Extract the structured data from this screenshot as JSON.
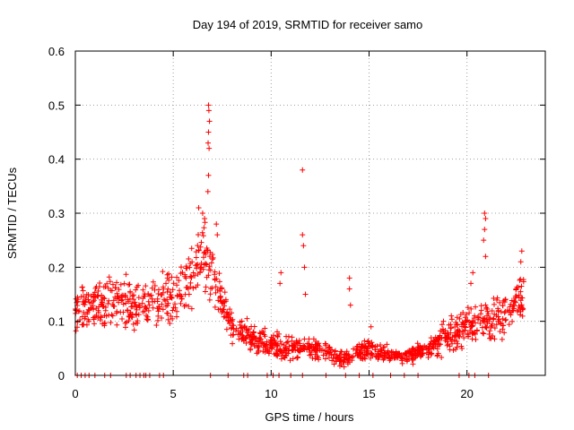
{
  "chart_data": {
    "type": "scatter",
    "title": "Day 194 of 2019, SRMTID for receiver samo",
    "xlabel": "GPS time / hours",
    "ylabel": "SRMTID / TECUs",
    "xlim": [
      0,
      24
    ],
    "ylim": [
      0,
      0.6
    ],
    "xticks": [
      0,
      5,
      10,
      15,
      20
    ],
    "xtick_labels": [
      "0",
      "5",
      "10",
      "15",
      "20"
    ],
    "yticks": [
      0,
      0.1,
      0.2,
      0.3,
      0.4,
      0.5,
      0.6
    ],
    "ytick_labels": [
      "0",
      "0.1",
      "0.2",
      "0.3",
      "0.4",
      "0.5",
      "0.6"
    ],
    "grid": true,
    "marker": "+",
    "color": "#ff0000",
    "envelope": {
      "x": [
        0,
        1,
        2,
        3,
        4,
        5,
        6,
        6.5,
        6.8,
        7.5,
        8,
        9,
        10,
        11,
        12,
        13,
        13.5,
        14,
        15,
        16,
        17,
        18,
        19,
        20,
        21,
        22,
        22.9
      ],
      "mean": [
        0.12,
        0.13,
        0.14,
        0.125,
        0.13,
        0.15,
        0.19,
        0.22,
        0.21,
        0.14,
        0.09,
        0.07,
        0.055,
        0.05,
        0.05,
        0.04,
        0.03,
        0.035,
        0.05,
        0.04,
        0.035,
        0.05,
        0.07,
        0.09,
        0.1,
        0.12,
        0.14
      ],
      "spread": [
        0.035,
        0.04,
        0.045,
        0.04,
        0.04,
        0.045,
        0.05,
        0.06,
        0.06,
        0.04,
        0.025,
        0.02,
        0.02,
        0.02,
        0.02,
        0.015,
        0.012,
        0.015,
        0.015,
        0.012,
        0.012,
        0.015,
        0.025,
        0.03,
        0.035,
        0.035,
        0.04
      ]
    },
    "spike_points": [
      {
        "x": 6.8,
        "y": 0.5
      },
      {
        "x": 6.82,
        "y": 0.49
      },
      {
        "x": 6.85,
        "y": 0.47
      },
      {
        "x": 6.8,
        "y": 0.45
      },
      {
        "x": 6.78,
        "y": 0.43
      },
      {
        "x": 6.83,
        "y": 0.42
      },
      {
        "x": 6.8,
        "y": 0.37
      },
      {
        "x": 6.77,
        "y": 0.34
      },
      {
        "x": 6.3,
        "y": 0.31
      },
      {
        "x": 6.5,
        "y": 0.3
      },
      {
        "x": 6.6,
        "y": 0.29
      },
      {
        "x": 7.2,
        "y": 0.28
      },
      {
        "x": 7.25,
        "y": 0.26
      },
      {
        "x": 11.6,
        "y": 0.38
      },
      {
        "x": 11.6,
        "y": 0.26
      },
      {
        "x": 11.65,
        "y": 0.24
      },
      {
        "x": 11.7,
        "y": 0.2
      },
      {
        "x": 11.75,
        "y": 0.15
      },
      {
        "x": 10.5,
        "y": 0.19
      },
      {
        "x": 10.45,
        "y": 0.17
      },
      {
        "x": 14.0,
        "y": 0.18
      },
      {
        "x": 14.0,
        "y": 0.16
      },
      {
        "x": 14.05,
        "y": 0.13
      },
      {
        "x": 20.9,
        "y": 0.3
      },
      {
        "x": 20.95,
        "y": 0.29
      },
      {
        "x": 20.9,
        "y": 0.27
      },
      {
        "x": 20.85,
        "y": 0.25
      },
      {
        "x": 20.95,
        "y": 0.22
      },
      {
        "x": 20.3,
        "y": 0.19
      },
      {
        "x": 20.2,
        "y": 0.17
      },
      {
        "x": 22.8,
        "y": 0.23
      },
      {
        "x": 22.75,
        "y": 0.21
      },
      {
        "x": 9.6,
        "y": 0.08
      },
      {
        "x": 15.1,
        "y": 0.09
      },
      {
        "x": 18.8,
        "y": 0.1
      },
      {
        "x": 19.2,
        "y": 0.11
      }
    ],
    "zero_points_x": [
      0.1,
      0.3,
      0.5,
      0.7,
      1.0,
      1.5,
      1.8,
      2.6,
      2.8,
      3.1,
      3.3,
      3.5,
      3.6,
      3.8,
      4.3,
      4.5,
      6.9,
      7.8,
      8.6,
      8.8,
      9.8,
      10.1,
      10.4,
      11.0,
      11.6,
      12.8,
      13.8,
      14.5,
      15.2,
      16.1,
      16.8,
      17.5,
      19.6,
      20.1,
      20.4,
      21.1
    ]
  }
}
